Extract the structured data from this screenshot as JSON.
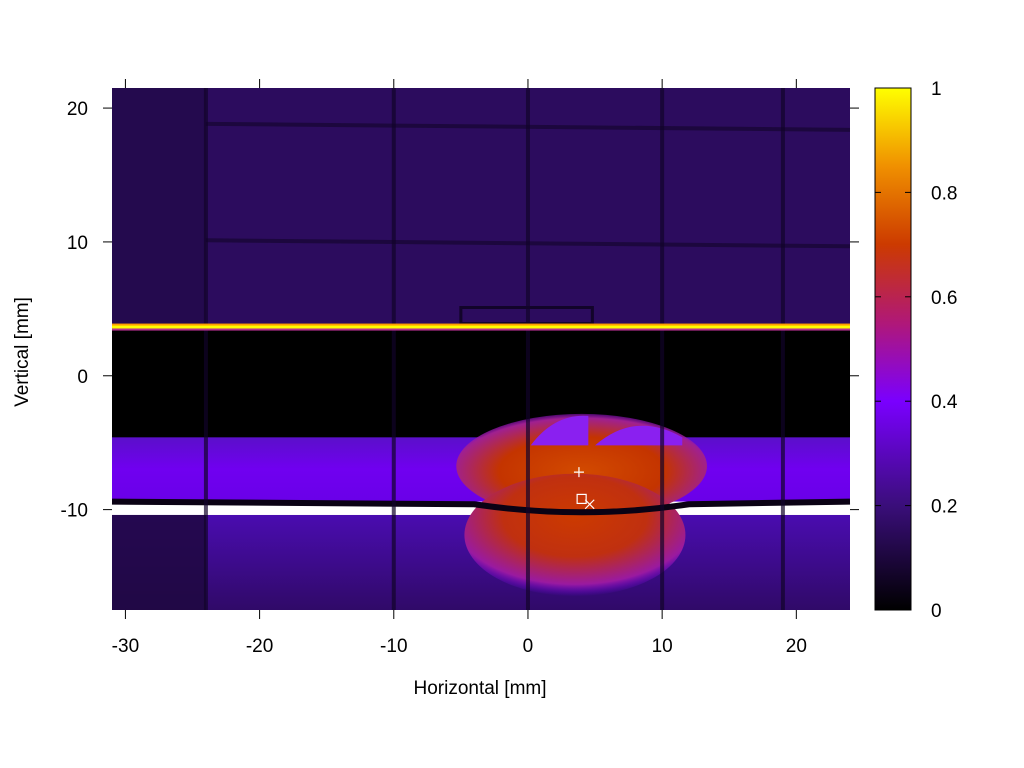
{
  "chart_data": {
    "type": "heatmap",
    "title": "",
    "xlabel": "Horizontal [mm]",
    "ylabel": "Vertical [mm]",
    "xlim": [
      -31,
      24
    ],
    "ylim": [
      -17.5,
      21.5
    ],
    "xticks": [
      -30,
      -20,
      -10,
      0,
      10,
      20
    ],
    "yticks": [
      -10,
      0,
      10,
      20
    ],
    "colorbar": {
      "range": [
        0,
        1
      ],
      "ticks": [
        "0",
        "0.2",
        "0.4",
        "0.6",
        "0.8",
        "1"
      ],
      "colormap": [
        {
          "v": 0.0,
          "color": "#000000"
        },
        {
          "v": 0.2,
          "color": "#3a0e7a"
        },
        {
          "v": 0.4,
          "color": "#7a00ff"
        },
        {
          "v": 0.55,
          "color": "#b01878"
        },
        {
          "v": 0.7,
          "color": "#cc3a00"
        },
        {
          "v": 0.85,
          "color": "#f09000"
        },
        {
          "v": 1.0,
          "color": "#ffff00"
        }
      ]
    },
    "regions": [
      {
        "name": "upper-background",
        "x": [
          -31,
          24
        ],
        "y": [
          3.5,
          21.5
        ],
        "value": 0.15
      },
      {
        "name": "bright-line",
        "x": [
          -31,
          24
        ],
        "y": [
          3.4,
          3.9
        ],
        "value": 1.0
      },
      {
        "name": "dark-gap",
        "x": [
          -31,
          24
        ],
        "y": [
          -4.6,
          3.4
        ],
        "value": 0.0
      },
      {
        "name": "beam-band",
        "x": [
          -31,
          24
        ],
        "y": [
          -9.4,
          -4.5
        ],
        "value": 0.3
      },
      {
        "name": "lower-band",
        "x": [
          -31,
          24
        ],
        "y": [
          -17.5,
          -10.4
        ],
        "value": 0.12
      },
      {
        "name": "beam-core-upper",
        "x": [
          -4,
          12
        ],
        "y": [
          -9.6,
          -3.0
        ],
        "value": 0.65
      },
      {
        "name": "beam-core-lower",
        "x": [
          -2.5,
          9.5
        ],
        "y": [
          -16.5,
          -10.4
        ],
        "value": 0.65
      }
    ],
    "grid_lines_x": [
      -24,
      -10,
      0,
      10,
      19
    ],
    "grid_lines_y": [
      -10,
      0,
      10,
      20
    ],
    "markers": [
      {
        "symbol": "+",
        "x": 3.8,
        "y": -7.2
      },
      {
        "symbol": "square",
        "x": 4.0,
        "y": -9.2
      },
      {
        "symbol": "x",
        "x": 4.6,
        "y": -9.6
      }
    ]
  }
}
